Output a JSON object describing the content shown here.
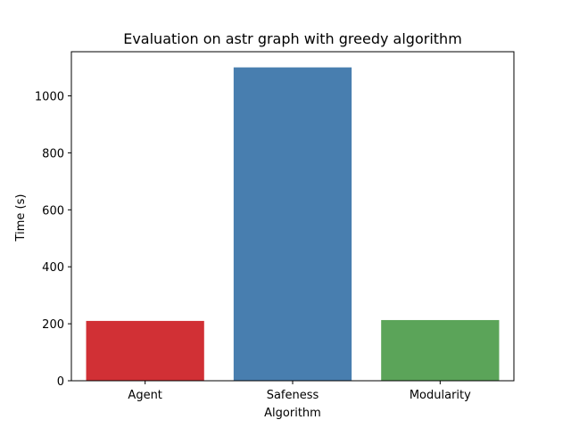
{
  "chart_data": {
    "type": "bar",
    "title": "Evaluation on astr graph with greedy algorithm",
    "xlabel": "Algorithm",
    "ylabel": "Time (s)",
    "categories": [
      "Agent",
      "Safeness",
      "Modularity"
    ],
    "values": [
      210,
      1100,
      213
    ],
    "colors": [
      "#d13035",
      "#487eaf",
      "#5ba459"
    ],
    "ylim": [
      0,
      1155
    ],
    "yticks": [
      0,
      200,
      400,
      600,
      800,
      1000
    ],
    "grid": false,
    "legend": "none"
  }
}
